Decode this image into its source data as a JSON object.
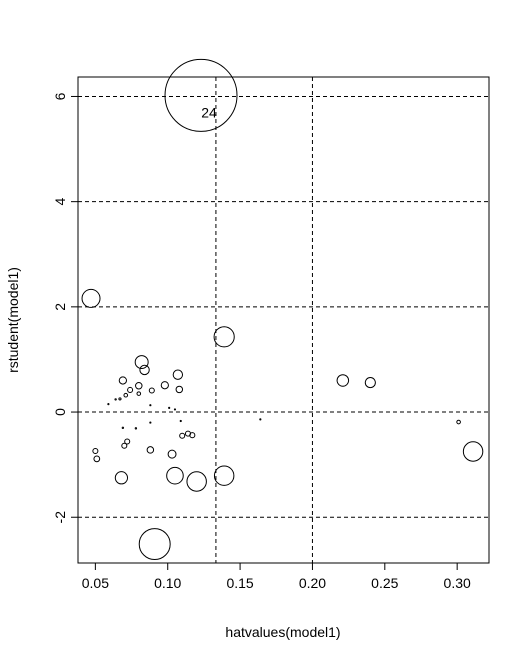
{
  "chart_data": {
    "type": "scatter",
    "title": "",
    "xlabel": "hatvalues(model1)",
    "ylabel": "rstudent(model1)",
    "xlim": [
      0.038,
      0.322
    ],
    "ylim": [
      -2.87,
      6.37
    ],
    "xticks": [
      0.05,
      0.1,
      0.15,
      0.2,
      0.25,
      0.3
    ],
    "xtick_labels": [
      "0.05",
      "0.10",
      "0.15",
      "0.20",
      "0.25",
      "0.30"
    ],
    "yticks": [
      -2,
      0,
      2,
      4,
      6
    ],
    "ytick_labels": [
      "-2",
      "0",
      "2",
      "4",
      "6"
    ],
    "reference_lines": {
      "horizontal": [
        -2,
        0,
        2,
        4,
        6
      ],
      "vertical": [
        0.1333,
        0.2
      ],
      "style": "dashed"
    },
    "bubble_size_variable": "cook's distance (relative)",
    "points": [
      {
        "x": 0.123,
        "y": 6.02,
        "size": 1.0,
        "label": "24"
      },
      {
        "x": 0.047,
        "y": 2.16,
        "size": 0.25
      },
      {
        "x": 0.139,
        "y": 1.43,
        "size": 0.28
      },
      {
        "x": 0.082,
        "y": 0.95,
        "size": 0.18
      },
      {
        "x": 0.084,
        "y": 0.8,
        "size": 0.13
      },
      {
        "x": 0.107,
        "y": 0.71,
        "size": 0.13
      },
      {
        "x": 0.069,
        "y": 0.6,
        "size": 0.1
      },
      {
        "x": 0.098,
        "y": 0.51,
        "size": 0.1
      },
      {
        "x": 0.08,
        "y": 0.5,
        "size": 0.09
      },
      {
        "x": 0.108,
        "y": 0.43,
        "size": 0.09
      },
      {
        "x": 0.074,
        "y": 0.42,
        "size": 0.07
      },
      {
        "x": 0.089,
        "y": 0.41,
        "size": 0.07
      },
      {
        "x": 0.08,
        "y": 0.35,
        "size": 0.05
      },
      {
        "x": 0.071,
        "y": 0.32,
        "size": 0.05
      },
      {
        "x": 0.067,
        "y": 0.25,
        "size": 0.03
      },
      {
        "x": 0.064,
        "y": 0.24,
        "size": 0.02
      },
      {
        "x": 0.059,
        "y": 0.15,
        "size": 0.015
      },
      {
        "x": 0.101,
        "y": 0.08,
        "size": 0.015
      },
      {
        "x": 0.105,
        "y": 0.05,
        "size": 0.015
      },
      {
        "x": 0.088,
        "y": 0.13,
        "size": 0.015
      },
      {
        "x": 0.109,
        "y": -0.17,
        "size": 0.015
      },
      {
        "x": 0.088,
        "y": -0.2,
        "size": 0.015
      },
      {
        "x": 0.164,
        "y": -0.14,
        "size": 0.015
      },
      {
        "x": 0.301,
        "y": -0.19,
        "size": 0.05
      },
      {
        "x": 0.069,
        "y": -0.3,
        "size": 0.02
      },
      {
        "x": 0.078,
        "y": -0.31,
        "size": 0.02
      },
      {
        "x": 0.114,
        "y": -0.41,
        "size": 0.07
      },
      {
        "x": 0.11,
        "y": -0.45,
        "size": 0.07
      },
      {
        "x": 0.117,
        "y": -0.44,
        "size": 0.07
      },
      {
        "x": 0.072,
        "y": -0.56,
        "size": 0.07
      },
      {
        "x": 0.07,
        "y": -0.64,
        "size": 0.07
      },
      {
        "x": 0.05,
        "y": -0.74,
        "size": 0.07
      },
      {
        "x": 0.051,
        "y": -0.89,
        "size": 0.08
      },
      {
        "x": 0.088,
        "y": -0.72,
        "size": 0.09
      },
      {
        "x": 0.103,
        "y": -0.8,
        "size": 0.11
      },
      {
        "x": 0.311,
        "y": -0.75,
        "size": 0.27
      },
      {
        "x": 0.068,
        "y": -1.25,
        "size": 0.17
      },
      {
        "x": 0.105,
        "y": -1.21,
        "size": 0.23
      },
      {
        "x": 0.139,
        "y": -1.21,
        "size": 0.27
      },
      {
        "x": 0.12,
        "y": -1.32,
        "size": 0.27
      },
      {
        "x": 0.221,
        "y": 0.6,
        "size": 0.16
      },
      {
        "x": 0.24,
        "y": 0.56,
        "size": 0.14
      },
      {
        "x": 0.091,
        "y": -2.51,
        "size": 0.43
      }
    ]
  }
}
